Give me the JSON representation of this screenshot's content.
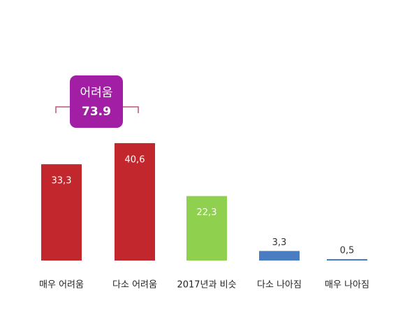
{
  "chart_data": {
    "type": "bar",
    "categories": [
      "매우 어려움",
      "다소 어려움",
      "2017년과 비슷",
      "다소 나아짐",
      "매우 나아짐"
    ],
    "values": [
      33.3,
      40.6,
      22.3,
      3.3,
      0.5
    ],
    "value_labels": [
      "33,3",
      "40,6",
      "22,3",
      "3,3",
      "0,5"
    ],
    "colors": [
      "#c1272d",
      "#c1272d",
      "#8fd14f",
      "#4a7cc1",
      "#4a7cc1"
    ],
    "annotation": {
      "label": "어려움",
      "value": 73.9
    }
  }
}
